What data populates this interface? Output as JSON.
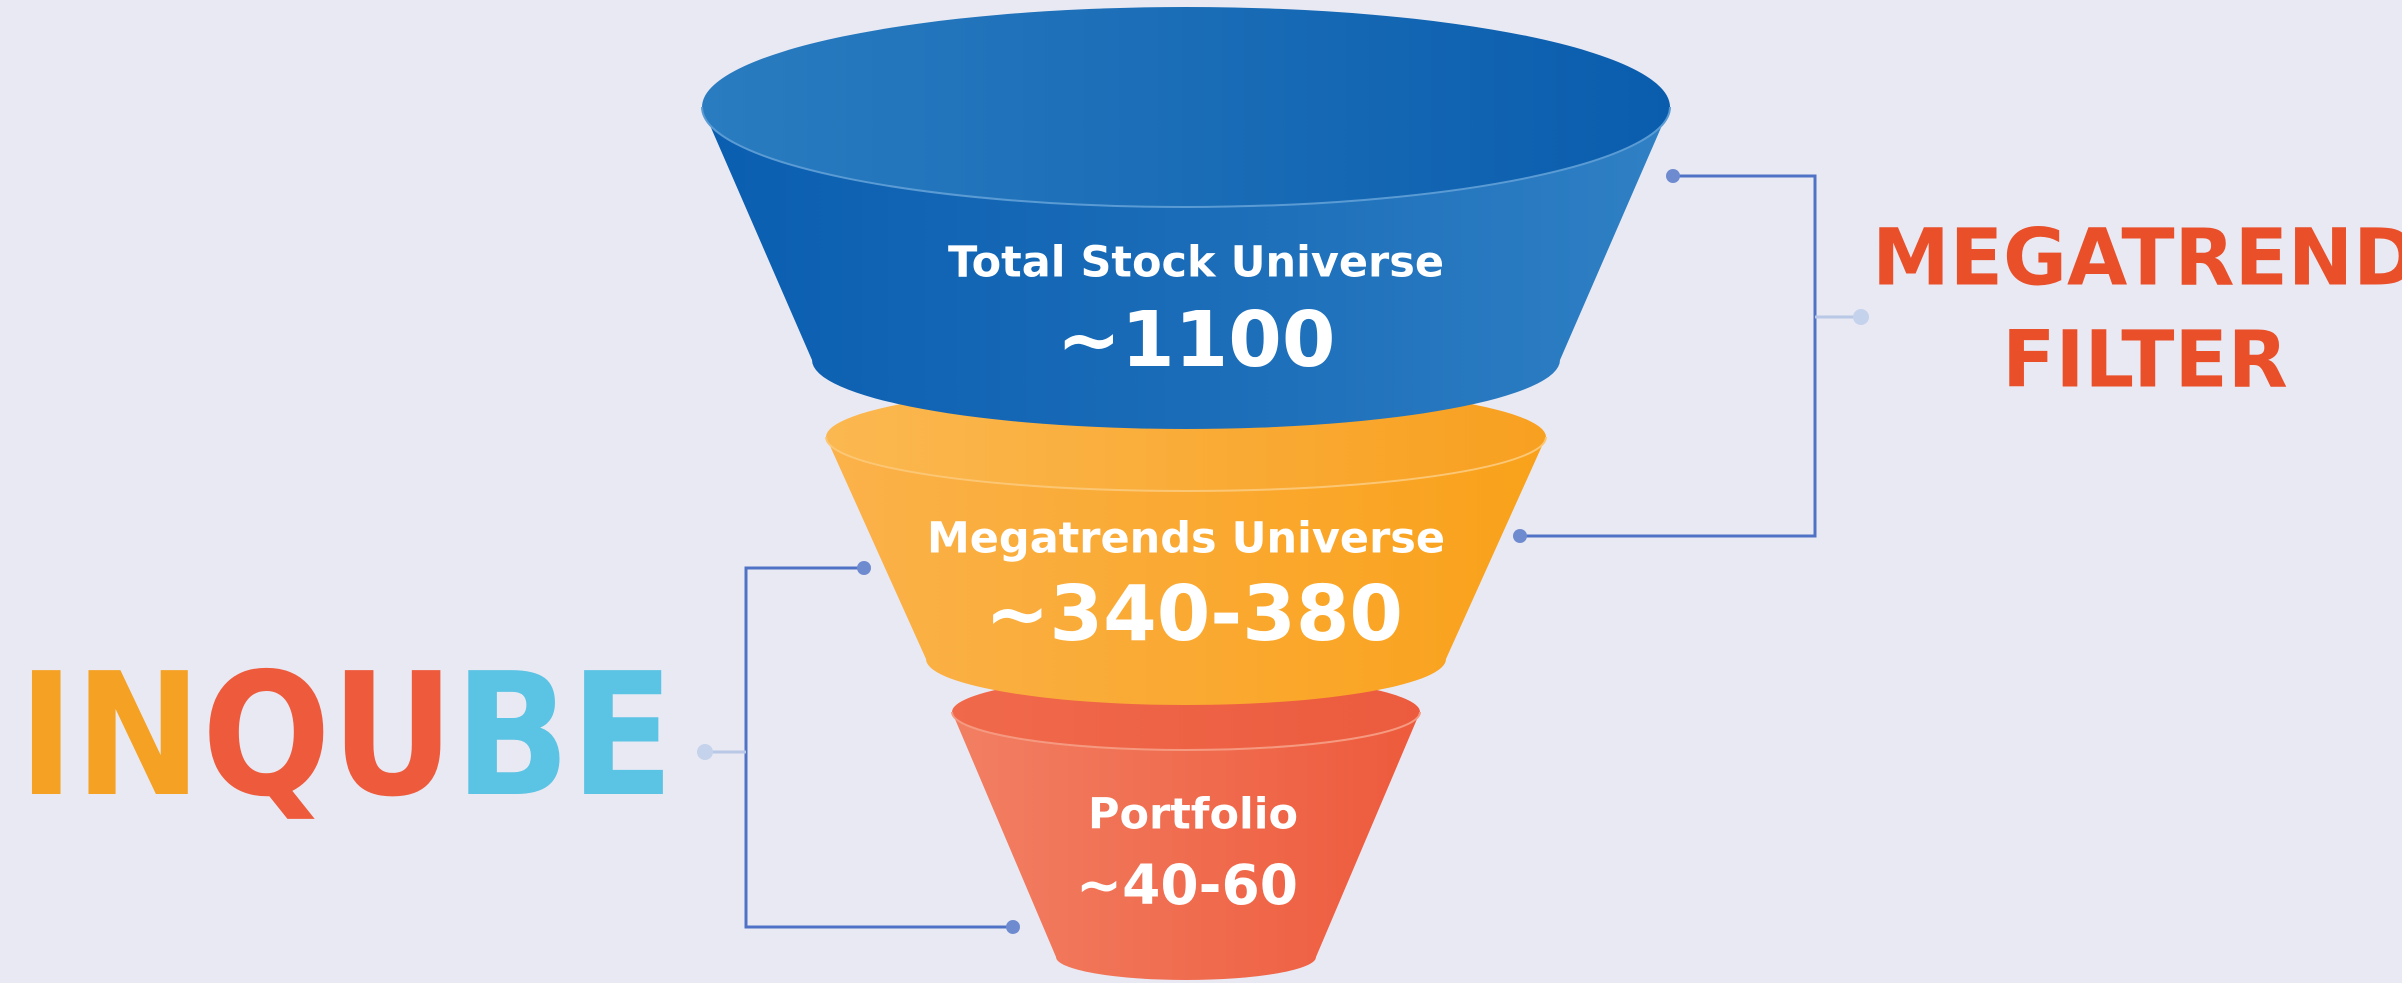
{
  "brand": {
    "parts": [
      {
        "text": "IN",
        "color": "#f5a123"
      },
      {
        "text": "QU",
        "color": "#ee5b3c"
      },
      {
        "text": "BE",
        "color": "#5bc3e3"
      }
    ]
  },
  "filter_label": {
    "lines": [
      "MEGATREND",
      "FILTER"
    ]
  },
  "funnel": {
    "stages": [
      {
        "label": "Total Stock Universe",
        "count": "~1100"
      },
      {
        "label": "Megatrends Universe",
        "count": "~340-380"
      },
      {
        "label": "Portfolio",
        "count": "~40-60"
      }
    ]
  }
}
